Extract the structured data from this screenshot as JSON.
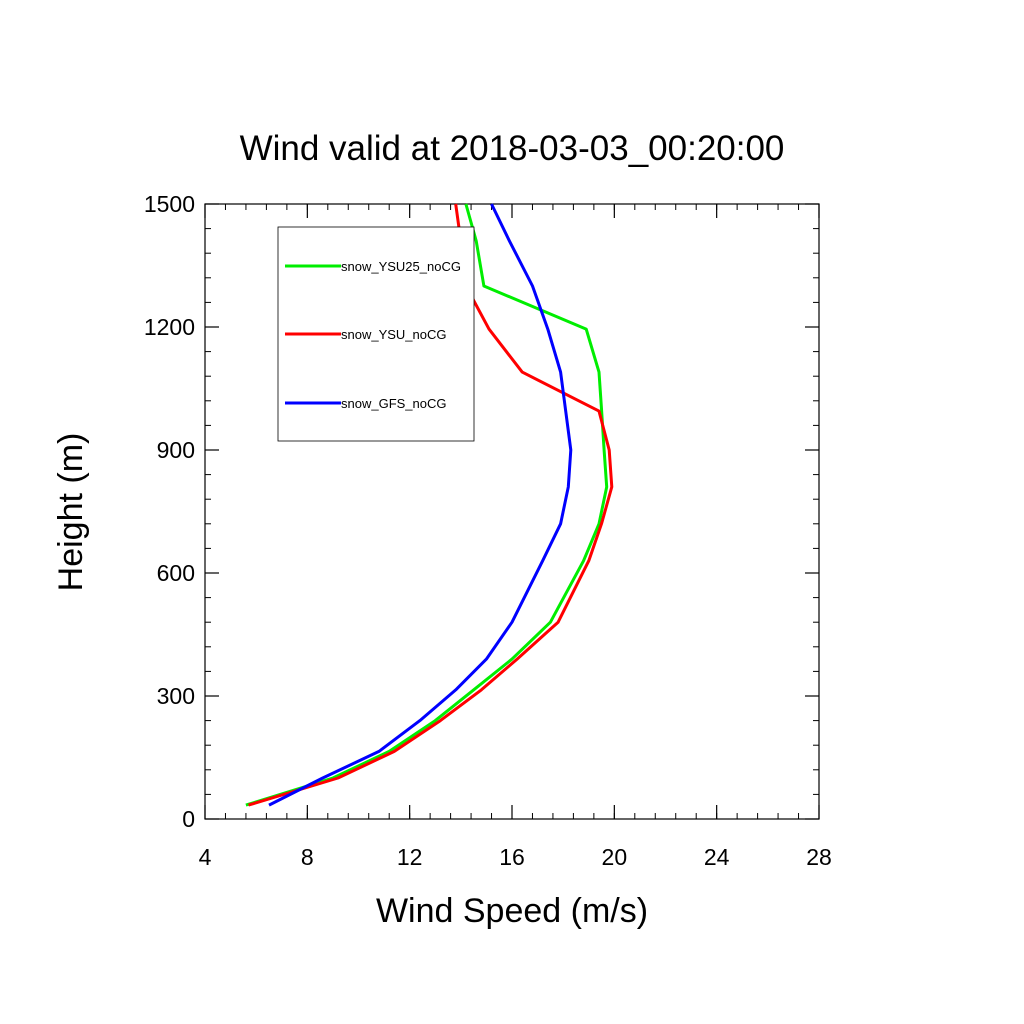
{
  "chart_data": {
    "type": "line",
    "title": "Wind valid at 2018-03-03_00:20:00",
    "xlabel": "Wind Speed (m/s)",
    "ylabel": "Height (m)",
    "xlim": [
      4,
      28
    ],
    "ylim": [
      0,
      1500
    ],
    "xticks": [
      4,
      8,
      12,
      16,
      20,
      24,
      28
    ],
    "yticks": [
      0,
      300,
      600,
      900,
      1200,
      1500
    ],
    "grid": false,
    "legend_position": "top-left",
    "series": [
      {
        "name": "snow_YSU25_noCG",
        "color": "#00ee00",
        "points": [
          [
            5.6,
            34
          ],
          [
            9.0,
            100
          ],
          [
            11.2,
            165
          ],
          [
            13.0,
            240
          ],
          [
            14.5,
            315
          ],
          [
            16.0,
            390
          ],
          [
            17.5,
            480
          ],
          [
            18.8,
            630
          ],
          [
            19.4,
            720
          ],
          [
            19.7,
            810
          ],
          [
            19.6,
            900
          ],
          [
            19.5,
            1000
          ],
          [
            19.4,
            1090
          ],
          [
            18.9,
            1195
          ],
          [
            14.9,
            1300
          ],
          [
            14.6,
            1410
          ],
          [
            14.2,
            1500
          ]
        ]
      },
      {
        "name": "snow_YSU_noCG",
        "color": "#ff0000",
        "points": [
          [
            5.7,
            34
          ],
          [
            9.2,
            100
          ],
          [
            11.4,
            165
          ],
          [
            13.2,
            240
          ],
          [
            14.8,
            315
          ],
          [
            16.2,
            390
          ],
          [
            17.8,
            480
          ],
          [
            19.0,
            630
          ],
          [
            19.5,
            720
          ],
          [
            19.9,
            810
          ],
          [
            19.8,
            900
          ],
          [
            19.4,
            995
          ],
          [
            16.4,
            1090
          ],
          [
            15.1,
            1195
          ],
          [
            14.2,
            1300
          ],
          [
            14.0,
            1410
          ],
          [
            13.8,
            1500
          ]
        ]
      },
      {
        "name": "snow_GFS_noCG",
        "color": "#0000ff",
        "points": [
          [
            6.5,
            34
          ],
          [
            8.6,
            100
          ],
          [
            10.8,
            165
          ],
          [
            12.4,
            240
          ],
          [
            13.8,
            315
          ],
          [
            15.0,
            390
          ],
          [
            16.0,
            480
          ],
          [
            17.2,
            630
          ],
          [
            17.9,
            720
          ],
          [
            18.2,
            810
          ],
          [
            18.3,
            900
          ],
          [
            18.1,
            995
          ],
          [
            17.9,
            1090
          ],
          [
            17.4,
            1195
          ],
          [
            16.8,
            1300
          ],
          [
            15.9,
            1410
          ],
          [
            15.2,
            1500
          ]
        ]
      }
    ]
  }
}
